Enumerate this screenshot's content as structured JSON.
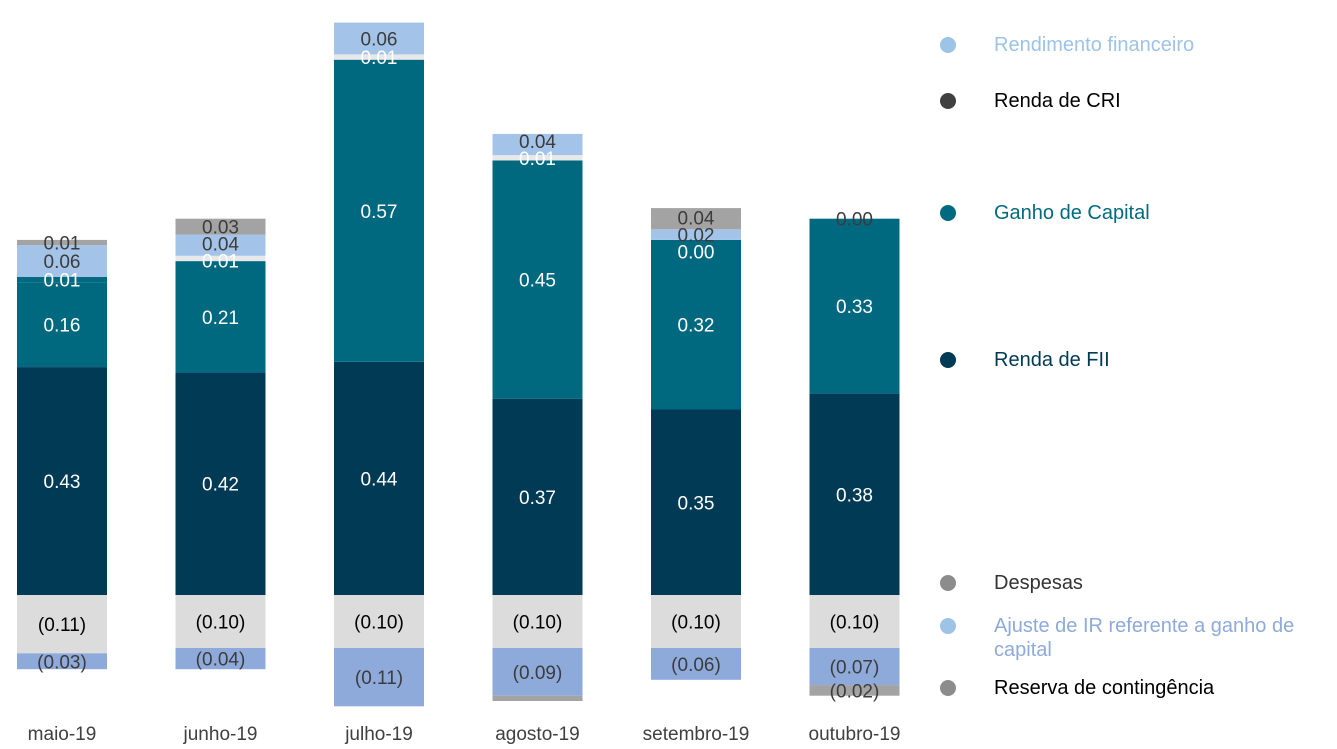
{
  "chart_data": {
    "type": "bar",
    "stacked": true,
    "categories": [
      "maio-19",
      "junho-19",
      "julho-19",
      "agosto-19",
      "setembro-19",
      "outubro-19"
    ],
    "series": [
      {
        "name": "Renda de FII",
        "color": "#003a55",
        "label_color": "#ffffff",
        "values": [
          0.43,
          0.42,
          0.44,
          0.37,
          0.35,
          0.38
        ],
        "labels": [
          "0.43",
          "0.42",
          "0.44",
          "0.37",
          "0.35",
          "0.38"
        ]
      },
      {
        "name": "Ganho de Capital",
        "color": "#00687f",
        "label_color": "#ffffff",
        "values": [
          0.16,
          0.21,
          0.57,
          0.45,
          0.32,
          0.33
        ],
        "labels": [
          "0.16",
          "0.21",
          "0.57",
          "0.45",
          "0.32",
          "0.33"
        ]
      },
      {
        "name": "Renda de CRI",
        "color": "#006b80",
        "label_color": "#ffffff",
        "values": [
          0.01,
          0.0,
          0.0,
          0.0,
          0.0,
          0.0
        ],
        "labels": [
          "0.01",
          "",
          "",
          "",
          "0.00",
          "0.00"
        ]
      },
      {
        "name": "Rendimento financeiro",
        "color": "#e8e8e8",
        "label_color": "#ffffff",
        "values": [
          0.0,
          0.01,
          0.01,
          0.01,
          0.0,
          0.0
        ],
        "labels": [
          "",
          "0.01",
          "0.01",
          "0.01",
          "",
          ""
        ]
      },
      {
        "name": "Ajuste de IR referente a ganho de capital",
        "color": "#a3c4e8",
        "label_color": "#3c3c3c",
        "values": [
          0.06,
          0.04,
          0.06,
          0.04,
          0.02,
          0.0
        ],
        "labels": [
          "0.06",
          "0.04",
          "0.06",
          "0.04",
          "0.02",
          ""
        ]
      },
      {
        "name": "Reserva de contingência",
        "color": "#a3a3a3",
        "label_color": "#3c3c3c",
        "values": [
          0.01,
          0.03,
          0.0,
          0.0,
          0.04,
          0.0
        ],
        "labels": [
          "0.01",
          "0.03",
          "",
          "",
          "0.04",
          "0.00"
        ]
      },
      {
        "name": "Despesas",
        "color": "#dcdcdc",
        "label_color": "#000000",
        "values": [
          -0.11,
          -0.1,
          -0.1,
          -0.1,
          -0.1,
          -0.1
        ],
        "labels": [
          "(0.11)",
          "(0.10)",
          "(0.10)",
          "(0.10)",
          "(0.10)",
          "(0.10)"
        ]
      },
      {
        "name": "Ajuste de IR referente a ganho de capital (negativo)",
        "color": "#8eaadb",
        "label_color": "#3c3c3c",
        "values": [
          -0.03,
          -0.04,
          -0.11,
          -0.09,
          -0.06,
          -0.07
        ],
        "labels": [
          "(0.03)",
          "(0.04)",
          "(0.11)",
          "(0.09)",
          "(0.06)",
          "(0.07)"
        ]
      },
      {
        "name": "Reserva de contingência (negativo)",
        "color": "#a3a3a3",
        "label_color": "#3c3c3c",
        "values": [
          0.0,
          0.0,
          0.0,
          -0.01,
          0.0,
          -0.02
        ],
        "labels": [
          "",
          "",
          "",
          "",
          "",
          "(0.02)"
        ]
      }
    ],
    "ylim": [
      -0.19,
      1.2
    ],
    "grid": false,
    "legend_position": "right"
  },
  "legend": [
    {
      "label": "Rendimento financeiro",
      "dot_color": "#9dc3e6",
      "text_color": "#9dc3e6"
    },
    {
      "label": "Renda de CRI",
      "dot_color": "#404040",
      "text_color": "#000000"
    },
    {
      "label": "Ganho de Capital",
      "dot_color": "#006b80",
      "text_color": "#006b80"
    },
    {
      "label": "Renda de FII",
      "dot_color": "#003a55",
      "text_color": "#003a55"
    },
    {
      "label": "Despesas",
      "dot_color": "#8c8c8c",
      "text_color": "#333333"
    },
    {
      "label": "Ajuste de IR referente a ganho de capital",
      "dot_color": "#9dc3e6",
      "text_color": "#8eaadb"
    },
    {
      "label": "Reserva de contingência",
      "dot_color": "#8c8c8c",
      "text_color": "#000000"
    }
  ]
}
